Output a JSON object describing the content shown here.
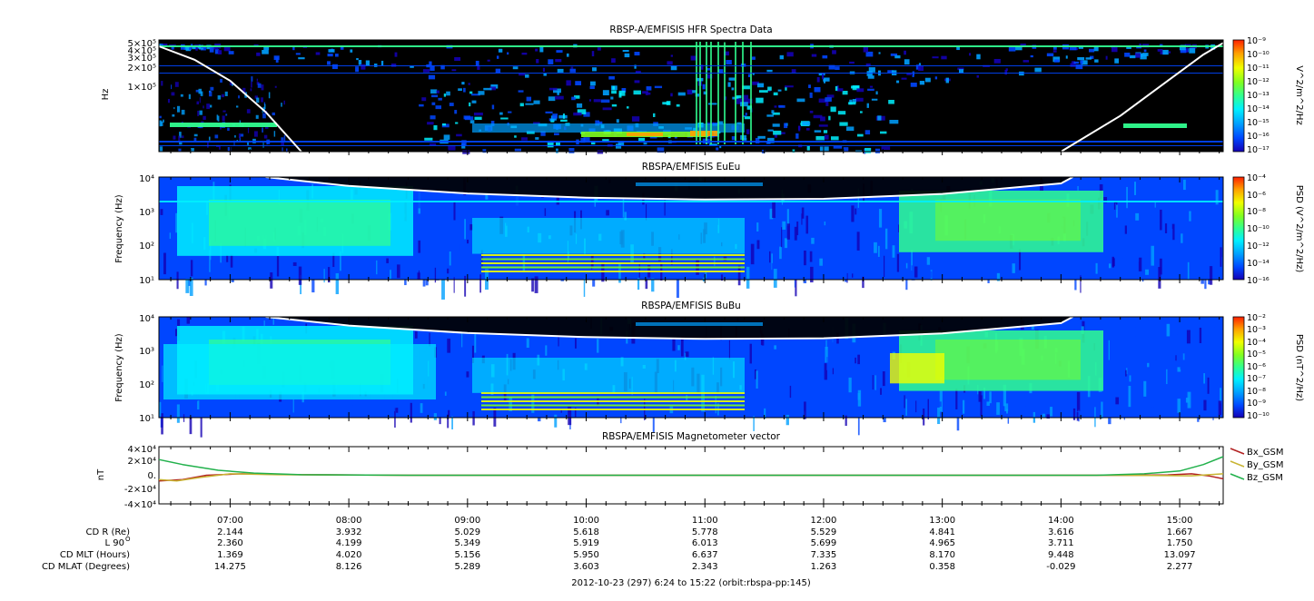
{
  "colors": {
    "spec": [
      "#000000",
      "#1400b4",
      "#0046ff",
      "#00a0ff",
      "#00f0ff",
      "#30ff90",
      "#80ff20",
      "#f0ff00",
      "#ffa000",
      "#ff2000"
    ],
    "bx": "#b22222",
    "by": "#c8b432",
    "bz": "#22b14c",
    "line": "#ffffff"
  },
  "panels": [
    {
      "title": "RBSP-A/EMFISIS  HFR Spectra Data",
      "ylabel": "Hz",
      "yticks": [
        "5×10⁵",
        "4×10⁵",
        "3×10⁵",
        "2×10⁵",
        "1×10⁵"
      ],
      "cbar_label": "V^2/m^2/Hz",
      "cbar_ticks": [
        "10⁻⁹",
        "10⁻¹⁰",
        "10⁻¹¹",
        "10⁻¹²",
        "10⁻¹³",
        "10⁻¹⁴",
        "10⁻¹⁵",
        "10⁻¹⁶",
        "10⁻¹⁷"
      ]
    },
    {
      "title": "RBSPA/EMFISIS  EuEu",
      "ylabel": "Frequency (Hz)",
      "yticks": [
        "10⁴",
        "10³",
        "10²",
        "10¹"
      ],
      "cbar_label": "PSD (V^2/m^2/Hz)",
      "cbar_ticks": [
        "10⁻⁴",
        "10⁻⁶",
        "10⁻⁸",
        "10⁻¹⁰",
        "10⁻¹²",
        "10⁻¹⁴",
        "10⁻¹⁶"
      ]
    },
    {
      "title": "RBSPA/EMFISIS  BuBu",
      "ylabel": "Frequency (Hz)",
      "yticks": [
        "10⁴",
        "10³",
        "10²",
        "10¹"
      ],
      "cbar_label": "PSD (nT^2/Hz)",
      "cbar_ticks": [
        "10⁻²",
        "10⁻³",
        "10⁻⁴",
        "10⁻⁵",
        "10⁻⁶",
        "10⁻⁷",
        "10⁻⁸",
        "10⁻⁹",
        "10⁻¹⁰"
      ]
    },
    {
      "title": "RBSPA/EMFISIS  Magnetometer vector",
      "ylabel": "nT",
      "yticks": [
        "4×10⁴",
        "2×10⁴",
        "0.",
        "-2×10⁴",
        "-4×10⁴"
      ]
    }
  ],
  "chart_data": {
    "type": "heatmap",
    "x": [
      "07:00",
      "08:00",
      "09:00",
      "10:00",
      "11:00",
      "12:00",
      "13:00",
      "14:00",
      "15:00"
    ],
    "x_hours": [
      7,
      8,
      9,
      10,
      11,
      12,
      13,
      14,
      15
    ],
    "xlim_hours": [
      6.4,
      15.3667
    ],
    "panels": [
      {
        "name": "HFR",
        "ylim_hz": [
          10000,
          500000
        ],
        "scale": "log",
        "line_hz": [
          [
            6.4,
            400000
          ],
          [
            6.7,
            250000
          ],
          [
            7.0,
            120000
          ],
          [
            7.3,
            40000
          ],
          [
            7.6,
            10000
          ],
          [
            14.0,
            10000
          ],
          [
            14.5,
            35000
          ],
          [
            14.9,
            120000
          ],
          [
            15.2,
            300000
          ],
          [
            15.3667,
            450000
          ]
        ]
      },
      {
        "name": "EuEu",
        "ylim_hz": [
          10,
          10000
        ],
        "scale": "log",
        "line_hz": [
          [
            7.3,
            10000
          ],
          [
            8.0,
            5500
          ],
          [
            9.0,
            3300
          ],
          [
            10.0,
            2500
          ],
          [
            11.0,
            2200
          ],
          [
            12.0,
            2300
          ],
          [
            13.0,
            3200
          ],
          [
            14.0,
            6500
          ],
          [
            14.1,
            10000
          ]
        ]
      },
      {
        "name": "BuBu",
        "ylim_hz": [
          10,
          10000
        ],
        "scale": "log",
        "line_hz": [
          [
            7.3,
            10000
          ],
          [
            8.0,
            5500
          ],
          [
            9.0,
            3300
          ],
          [
            10.0,
            2500
          ],
          [
            11.0,
            2200
          ],
          [
            12.0,
            2300
          ],
          [
            13.0,
            3200
          ],
          [
            14.0,
            6500
          ],
          [
            14.1,
            10000
          ]
        ]
      }
    ],
    "mag": {
      "ylim": [
        -40000,
        40000
      ],
      "series": [
        {
          "name": "Bx_GSM",
          "points": [
            [
              6.4,
              -8000
            ],
            [
              6.6,
              -6000
            ],
            [
              6.8,
              0
            ],
            [
              7.1,
              2000
            ],
            [
              7.5,
              1000
            ],
            [
              8.5,
              0
            ],
            [
              14.6,
              0
            ],
            [
              14.9,
              500
            ],
            [
              15.1,
              2000
            ],
            [
              15.25,
              -1000
            ],
            [
              15.3667,
              -5000
            ]
          ]
        },
        {
          "name": "By_GSM",
          "points": [
            [
              6.4,
              -6000
            ],
            [
              6.55,
              -8000
            ],
            [
              6.75,
              -3000
            ],
            [
              7.0,
              2000
            ],
            [
              7.4,
              800
            ],
            [
              8.5,
              0
            ],
            [
              14.5,
              0
            ],
            [
              14.9,
              -500
            ],
            [
              15.1,
              -800
            ],
            [
              15.3667,
              2000
            ]
          ]
        },
        {
          "name": "Bz_GSM",
          "points": [
            [
              6.4,
              22000
            ],
            [
              6.6,
              15000
            ],
            [
              6.9,
              7000
            ],
            [
              7.2,
              3000
            ],
            [
              7.6,
              800
            ],
            [
              8.5,
              0
            ],
            [
              14.3,
              0
            ],
            [
              14.7,
              2000
            ],
            [
              15.0,
              6000
            ],
            [
              15.2,
              15000
            ],
            [
              15.3667,
              26000
            ]
          ]
        }
      ]
    }
  },
  "ephemeris": {
    "rows": [
      {
        "label": "CD R (Re)",
        "values": [
          "2.144",
          "3.932",
          "5.029",
          "5.618",
          "5.778",
          "5.529",
          "4.841",
          "3.616",
          "1.667"
        ]
      },
      {
        "label": "L 90",
        "values": [
          "2.360",
          "4.199",
          "5.349",
          "5.919",
          "6.013",
          "5.699",
          "4.965",
          "3.711",
          "1.750"
        ]
      },
      {
        "label": "CD MLT (Hours)",
        "values": [
          "1.369",
          "4.020",
          "5.156",
          "5.950",
          "6.637",
          "7.335",
          "8.170",
          "9.448",
          "13.097"
        ]
      },
      {
        "label": "CD MLAT (Degrees)",
        "values": [
          "14.275",
          "8.126",
          "5.289",
          "3.603",
          "2.343",
          "1.263",
          "0.358",
          "-0.029",
          "2.277"
        ]
      }
    ],
    "l_superscript": "O",
    "footer": "2012-10-23 (297) 6:24 to 15:22 (orbit:rbspa-pp:145)"
  }
}
